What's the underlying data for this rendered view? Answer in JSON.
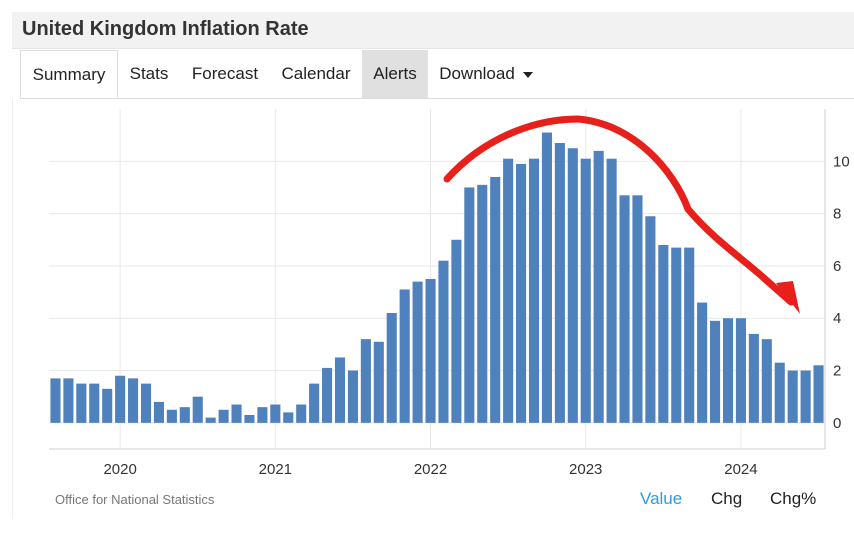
{
  "header": {
    "title": "United Kingdom Inflation Rate"
  },
  "tabs": [
    {
      "label": "Summary",
      "active": true
    },
    {
      "label": "Stats"
    },
    {
      "label": "Forecast"
    },
    {
      "label": "Calendar"
    },
    {
      "label": "Alerts"
    },
    {
      "label": "Download"
    }
  ],
  "colors": {
    "bar": "#4f81bd",
    "annotation": "#e8201c",
    "active_toggle": "#2e9bdd",
    "grid": "#e9e9e9"
  },
  "chart_data": {
    "type": "bar",
    "x_start": "2019-08",
    "frequency": "monthly",
    "values": [
      1.7,
      1.7,
      1.5,
      1.5,
      1.3,
      1.8,
      1.7,
      1.5,
      0.8,
      0.5,
      0.6,
      1.0,
      0.2,
      0.5,
      0.7,
      0.3,
      0.6,
      0.7,
      0.4,
      0.7,
      1.5,
      2.1,
      2.5,
      2.0,
      3.2,
      3.1,
      4.2,
      5.1,
      5.4,
      5.5,
      6.2,
      7.0,
      9.0,
      9.1,
      9.4,
      10.1,
      9.9,
      10.1,
      11.1,
      10.7,
      10.5,
      10.1,
      10.4,
      10.1,
      8.7,
      8.7,
      7.9,
      6.8,
      6.7,
      6.7,
      4.6,
      3.9,
      4.0,
      4.0,
      3.4,
      3.2,
      2.3,
      2.0,
      2.0,
      2.2
    ],
    "x_tick_labels": [
      "2020",
      "2021",
      "2022",
      "2023",
      "2024"
    ],
    "y_ticks": [
      0,
      2,
      4,
      6,
      8,
      10
    ],
    "ylim": [
      -1,
      12
    ],
    "grid": true,
    "annotation": "red hand-drawn arrow curving over the 2022–2023 peak, pointing down toward 2024"
  },
  "footer": {
    "source": "Office for National Statistics",
    "toggles": [
      {
        "label": "Value",
        "active": true
      },
      {
        "label": "Chg"
      },
      {
        "label": "Chg%"
      }
    ]
  }
}
